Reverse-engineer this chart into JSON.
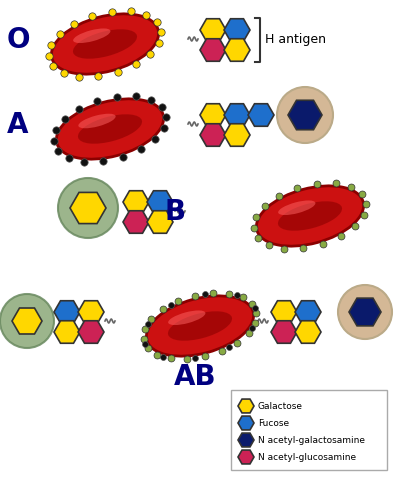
{
  "background": "#ffffff",
  "colors": {
    "galactose": "#FFD700",
    "fucose": "#1E6FCC",
    "n_acetyl_galactosamine": "#0A1A6B",
    "n_acetyl_glucosamine": "#CC2255",
    "rbc_red": "#CC1111",
    "rbc_dark": "#8B0000",
    "green_circle": "#8BA878",
    "tan_circle": "#D4B896"
  },
  "labels": {
    "O": "O",
    "A": "A",
    "B": "B",
    "AB": "AB",
    "H_antigen": "H antigen"
  },
  "legend_items": [
    [
      "Galactose",
      "#FFD700"
    ],
    [
      "Fucose",
      "#1E6FCC"
    ],
    [
      "N acetyl-galactosamine",
      "#0A1A6B"
    ],
    [
      "N acetyl-glucosamine",
      "#CC2255"
    ]
  ]
}
